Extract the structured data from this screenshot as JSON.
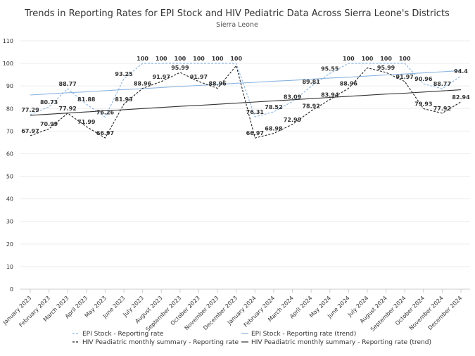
{
  "chart_data": {
    "type": "line",
    "title": "Trends in Reporting Rates for EPI Stock and HIV Pediatric Data Across Sierra Leone's Districts",
    "subtitle": "Sierra Leone",
    "ylim": [
      0,
      110
    ],
    "yticks": [
      0,
      10,
      20,
      30,
      40,
      50,
      60,
      70,
      80,
      90,
      100,
      110
    ],
    "grid": true,
    "legend_position": "bottom",
    "categories": [
      "January 2023",
      "February 2023",
      "March 2023",
      "April 2023",
      "May 2023",
      "June 2023",
      "July 2023",
      "August 2023",
      "September 2023",
      "October 2023",
      "November 2023",
      "December 2023",
      "January 2024",
      "February 2024",
      "March 2024",
      "April 2024",
      "May 2024",
      "June 2024",
      "July 2024",
      "August 2024",
      "September 2024",
      "October 2024",
      "November 2024",
      "December 2024"
    ],
    "series": [
      {
        "name": "EPI Stock - Reporting rate",
        "color": "#8ab4e0",
        "style": "dashed",
        "values": [
          77.29,
          80.73,
          88.77,
          81.88,
          76.26,
          93.25,
          100,
          100,
          100,
          100,
          100,
          100,
          76.31,
          78.52,
          83.09,
          89.81,
          95.55,
          100,
          100,
          100,
          100,
          90.96,
          88.77,
          94.4
        ],
        "labels": [
          "77.29",
          "80.73",
          "88.77",
          "81.88",
          "76.26",
          "93.25",
          "100",
          "100",
          "100",
          "100",
          "100",
          "100",
          "76.31",
          "78.52",
          "83.09",
          "89.81",
          "95.55",
          "100",
          "100",
          "100",
          "100",
          "90.96",
          "88.77",
          "94.4"
        ]
      },
      {
        "name": "HIV Peadiatric monthly summary - Reporting rate",
        "color": "#222222",
        "style": "dashed",
        "values": [
          67.97,
          70.99,
          77.92,
          71.99,
          66.97,
          81.93,
          88.96,
          91.97,
          95.99,
          91.97,
          88.96,
          99,
          66.97,
          68.98,
          72.99,
          78.92,
          83.94,
          88.96,
          98,
          95.99,
          91.97,
          79.93,
          77.92,
          82.94
        ],
        "labels": [
          "67.97",
          "70.99",
          "77.92",
          "71.99",
          "66.97",
          "81.93",
          "88.96",
          "91.97",
          "95.99",
          "91.97",
          "88.96",
          "",
          "66.97",
          "68.98",
          "72.99",
          "78.92",
          "83.94",
          "88.96",
          "",
          "95.99",
          "91.97",
          "79.93",
          "77.92",
          "82.94"
        ]
      },
      {
        "name": "EPI Stock - Reporting rate (trend)",
        "color": "#8ab4e0",
        "style": "solid",
        "values": [
          86,
          86.5,
          87,
          87.4,
          87.9,
          88.4,
          88.8,
          89.3,
          89.8,
          90.2,
          90.7,
          91.2,
          91.6,
          92.1,
          92.5,
          93,
          93.5,
          93.9,
          94.4,
          94.9,
          95.3,
          95.8,
          96.3,
          96.8
        ]
      },
      {
        "name": "HIV Peadiatric monthly summary - Reporting rate (trend)",
        "color": "#333333",
        "style": "solid",
        "values": [
          77,
          77.5,
          78,
          78.5,
          79,
          79.5,
          80,
          80.5,
          81,
          81.4,
          81.9,
          82.4,
          82.9,
          83.4,
          83.9,
          84.4,
          84.9,
          85.4,
          85.9,
          86.4,
          86.8,
          87.3,
          87.8,
          88.3
        ]
      }
    ]
  }
}
